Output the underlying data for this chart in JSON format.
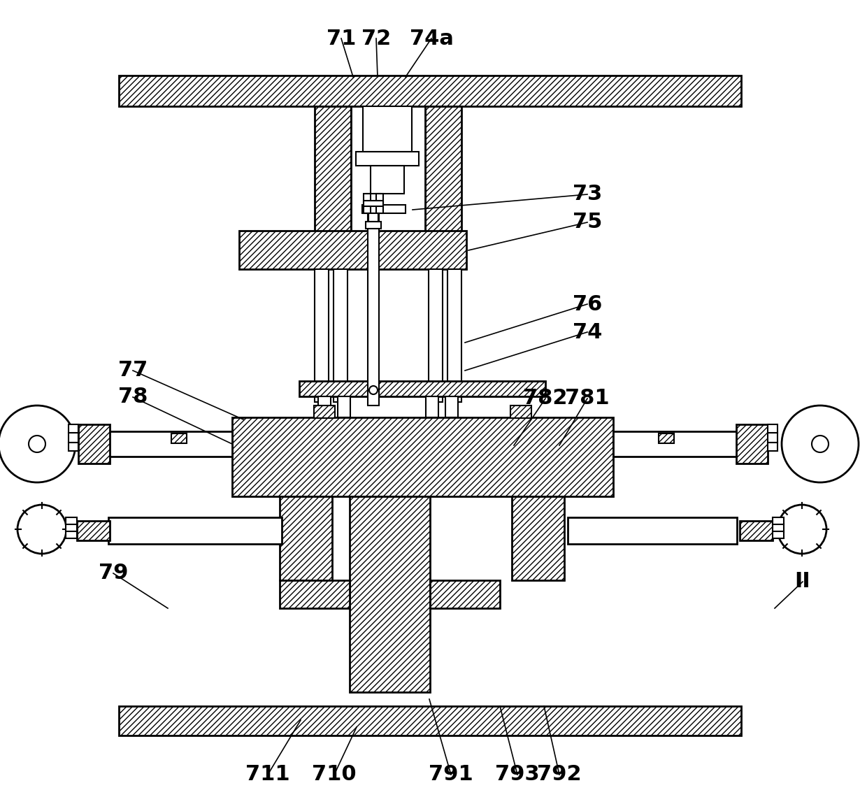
{
  "bg_color": "#ffffff",
  "line_color": "#000000",
  "lw": 1.5,
  "lw2": 2.0,
  "hatch": "////",
  "label_fontsize": 22,
  "label_fontweight": "bold"
}
